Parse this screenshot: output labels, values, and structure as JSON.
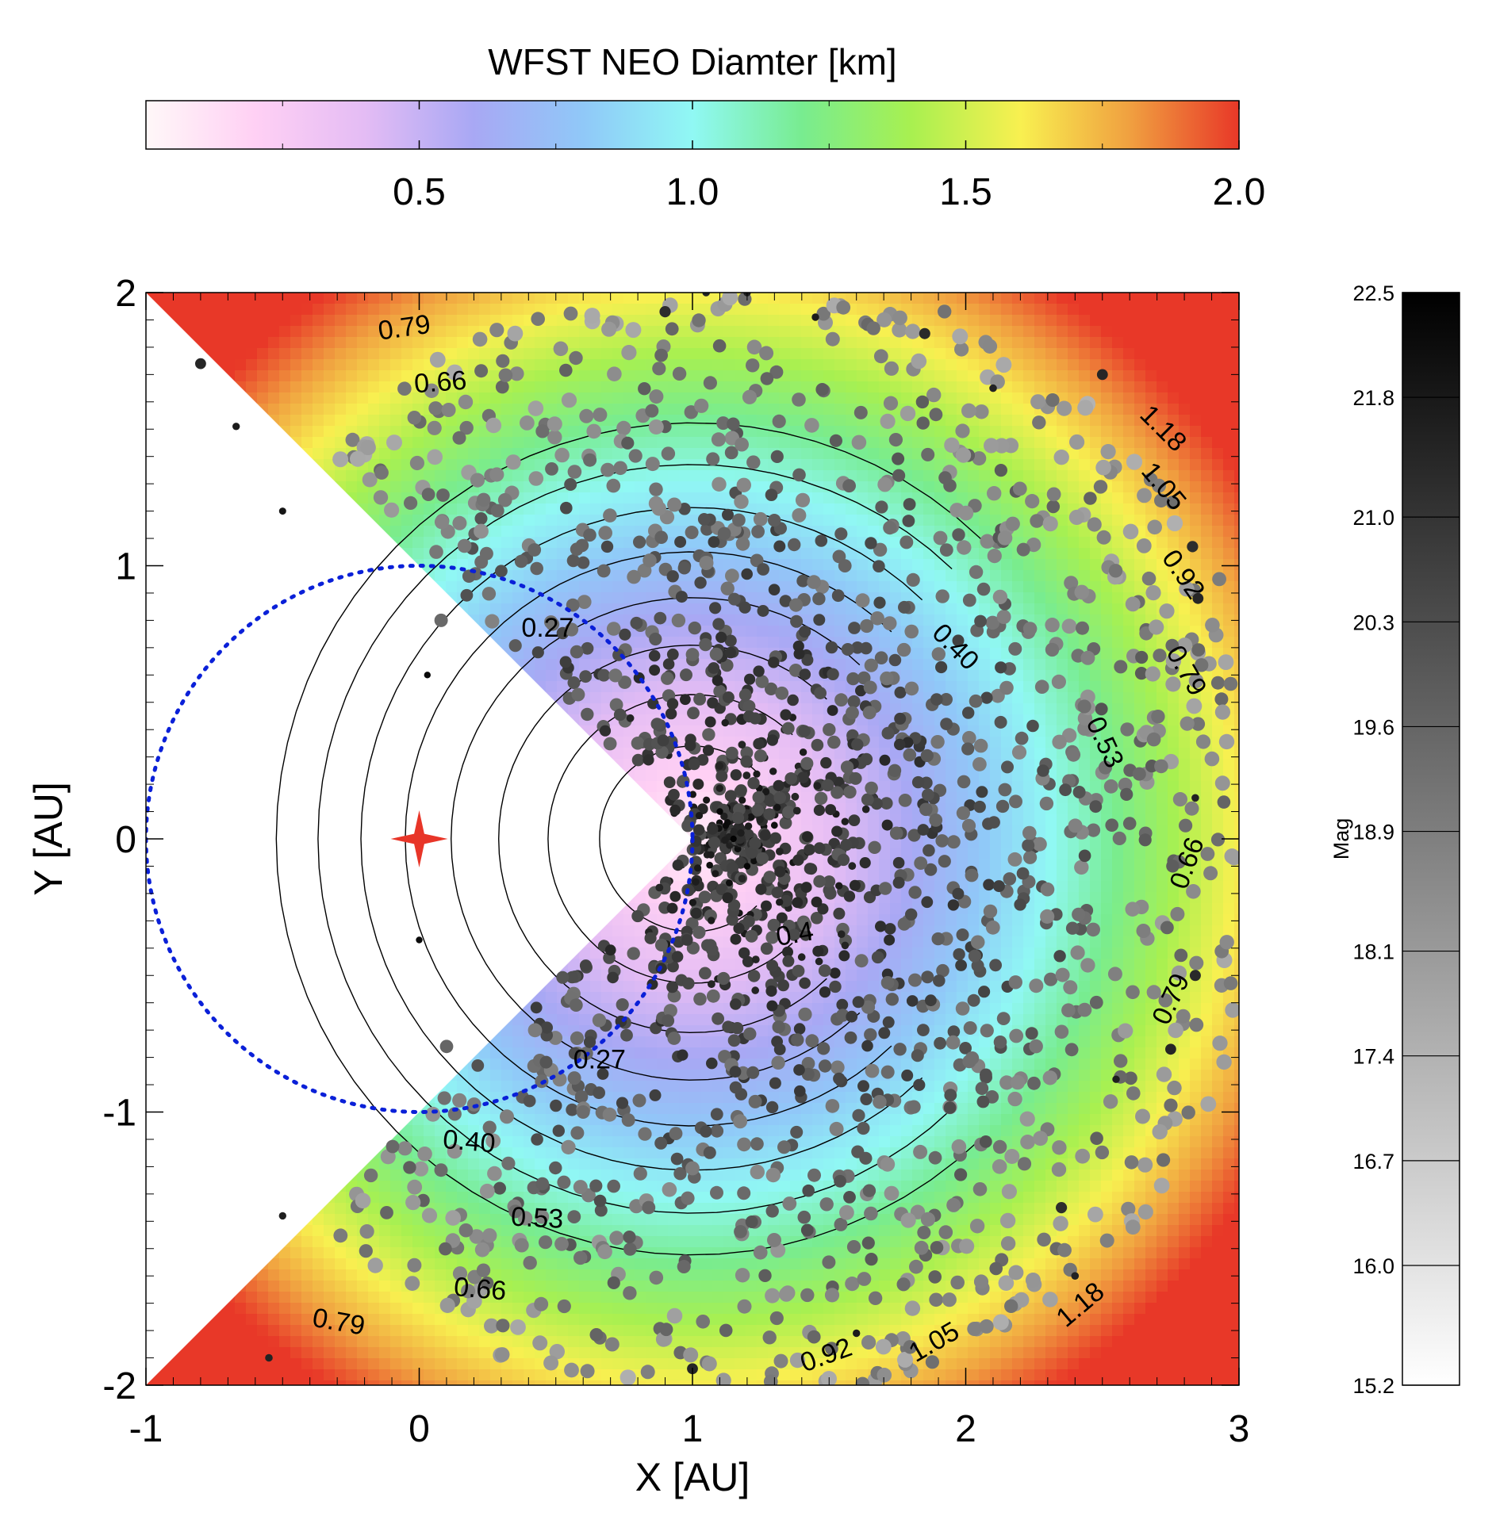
{
  "chart_data": {
    "type": "scatter",
    "title": "WFST NEO Diamter [km]",
    "xlabel": "X [AU]",
    "ylabel": "Y [AU]",
    "xlim": [
      -1,
      3
    ],
    "ylim": [
      -2,
      2
    ],
    "x_ticks": [
      "-1",
      "0",
      "1",
      "2",
      "3"
    ],
    "y_ticks": [
      "-2",
      "-1",
      "0",
      "1",
      "2"
    ],
    "background_field": {
      "quantity": "diameter_km",
      "colormap": [
        "#fff8f8",
        "#ffd0f4",
        "#e4bcf4",
        "#a8a8f4",
        "#90c8f8",
        "#90f8f4",
        "#78ec90",
        "#a8f050",
        "#f8f050",
        "#f0a040",
        "#e83828"
      ],
      "range": [
        0.0,
        2.0
      ],
      "excluded_region": "wedge toward x < 0 bounded by lines y = ±(x - 1)"
    },
    "contour_levels": [
      "0.27",
      "0.40",
      "0.53",
      "0.66",
      "0.79",
      "0.92",
      "1.05",
      "1.18"
    ],
    "contour_labels": [
      {
        "text": "0.79",
        "x": -0.05,
        "y": 1.84,
        "angle": -8
      },
      {
        "text": "0.66",
        "x": 0.08,
        "y": 1.64,
        "angle": -4
      },
      {
        "text": "0.27",
        "x": 0.47,
        "y": 0.74,
        "angle": 0
      },
      {
        "text": "0.40",
        "x": 1.94,
        "y": 0.68,
        "angle": 45
      },
      {
        "text": "0.53",
        "x": 2.48,
        "y": 0.34,
        "angle": 65
      },
      {
        "text": "0.79",
        "x": 2.78,
        "y": 0.6,
        "angle": 60
      },
      {
        "text": "0.92",
        "x": 2.77,
        "y": 0.95,
        "angle": 55
      },
      {
        "text": "1.05",
        "x": 2.7,
        "y": 1.27,
        "angle": 50
      },
      {
        "text": "1.18",
        "x": 2.7,
        "y": 1.48,
        "angle": 45
      },
      {
        "text": "0.66",
        "x": 2.84,
        "y": -0.1,
        "angle": -70
      },
      {
        "text": "0.79",
        "x": 2.78,
        "y": -0.6,
        "angle": -65
      },
      {
        "text": "0.4",
        "x": 1.38,
        "y": -0.38,
        "angle": -10
      },
      {
        "text": "0.27",
        "x": 0.66,
        "y": -0.84,
        "angle": 0
      },
      {
        "text": "0.40",
        "x": 0.18,
        "y": -1.14,
        "angle": 5
      },
      {
        "text": "0.53",
        "x": 0.43,
        "y": -1.42,
        "angle": 3
      },
      {
        "text": "0.66",
        "x": 0.22,
        "y": -1.68,
        "angle": 5
      },
      {
        "text": "0.79",
        "x": -0.3,
        "y": -1.8,
        "angle": 10
      },
      {
        "text": "0.92",
        "x": 1.5,
        "y": -1.92,
        "angle": -20
      },
      {
        "text": "1.05",
        "x": 1.9,
        "y": -1.87,
        "angle": -30
      },
      {
        "text": "1.18",
        "x": 2.44,
        "y": -1.73,
        "angle": -40
      }
    ],
    "sun": {
      "x": 0.0,
      "y": 0.0,
      "color": "#e83528"
    },
    "earth_orbit": {
      "center_x": 0.0,
      "center_y": 0.0,
      "radius": 1.0,
      "style": "dotted",
      "color": "#0a20d8"
    },
    "colorbar": {
      "label": "WFST NEO Diamter [km]",
      "orientation": "horizontal",
      "range": [
        0.0,
        2.0
      ],
      "ticks": [
        "0.5",
        "1.0",
        "1.5",
        "2.0"
      ]
    },
    "marker_colorbar": {
      "label": "Mag",
      "orientation": "vertical",
      "range": [
        15.2,
        22.5
      ],
      "ticks": [
        "22.5",
        "21.8",
        "21.0",
        "20.3",
        "19.6",
        "18.9",
        "18.1",
        "17.4",
        "16.7",
        "16.0",
        "15.2"
      ]
    },
    "series": [
      {
        "marker": "filled circle",
        "point_count": 1900,
        "distribution": "dense cluster around x ≈ 1.1, y ≈ 0 thinning outward to radius ≈ 2 AU, absent inside the excluded wedge",
        "color_by": "magnitude (grey scale)",
        "size_by": "magnitude (brighter = larger)",
        "sample_points": [
          {
            "x": 1.05,
            "y": 2.0,
            "mag": 21.5
          },
          {
            "x": 1.2,
            "y": 2.0,
            "mag": 21.6
          },
          {
            "x": 0.9,
            "y": 1.93,
            "mag": 21.2
          },
          {
            "x": 1.45,
            "y": 1.91,
            "mag": 21.7
          },
          {
            "x": 1.85,
            "y": 1.85,
            "mag": 21.3
          },
          {
            "x": 2.5,
            "y": 1.7,
            "mag": 21.4
          },
          {
            "x": 2.1,
            "y": 1.65,
            "mag": 21.5
          },
          {
            "x": 2.83,
            "y": 1.07,
            "mag": 21.2
          },
          {
            "x": 2.85,
            "y": 0.88,
            "mag": 21.4
          },
          {
            "x": 2.84,
            "y": 0.15,
            "mag": 21.5
          },
          {
            "x": 2.84,
            "y": -0.5,
            "mag": 21.3
          },
          {
            "x": 2.75,
            "y": -0.77,
            "mag": 21.4
          },
          {
            "x": 2.55,
            "y": -0.88,
            "mag": 21.6
          },
          {
            "x": 2.35,
            "y": -1.35,
            "mag": 21.2
          },
          {
            "x": 2.4,
            "y": -1.6,
            "mag": 21.5
          },
          {
            "x": 1.6,
            "y": -1.81,
            "mag": 21.7
          },
          {
            "x": 1.0,
            "y": -1.94,
            "mag": 21.4
          },
          {
            "x": -0.55,
            "y": -1.9,
            "mag": 21.5
          },
          {
            "x": -0.5,
            "y": -1.38,
            "mag": 21.6
          },
          {
            "x": -0.8,
            "y": 1.74,
            "mag": 21.4
          },
          {
            "x": -0.67,
            "y": 1.51,
            "mag": 21.7
          },
          {
            "x": -0.5,
            "y": 1.2,
            "mag": 21.9
          },
          {
            "x": 0.0,
            "y": -0.37,
            "mag": 22.2
          },
          {
            "x": 0.03,
            "y": 0.6,
            "mag": 22.2
          },
          {
            "x": 1.15,
            "y": 0.0,
            "mag": 22.4
          },
          {
            "x": 1.1,
            "y": 0.1,
            "mag": 22.3
          },
          {
            "x": 1.2,
            "y": -0.1,
            "mag": 22.3
          },
          {
            "x": 1.3,
            "y": 0.05,
            "mag": 22.0
          },
          {
            "x": 1.5,
            "y": 0.4,
            "mag": 19.8
          },
          {
            "x": 0.6,
            "y": -1.0,
            "mag": 19.4
          },
          {
            "x": 0.1,
            "y": -0.76,
            "mag": 19.6
          },
          {
            "x": 0.08,
            "y": 0.8,
            "mag": 19.5
          }
        ]
      }
    ],
    "grid": false
  }
}
